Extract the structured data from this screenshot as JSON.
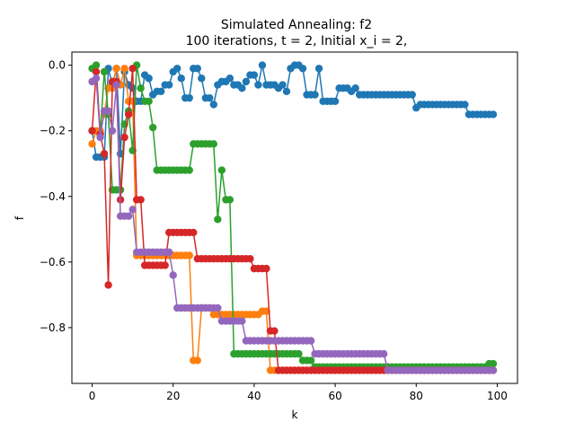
{
  "chart_data": {
    "type": "line",
    "title": "Simulated Annealing: f2",
    "subtitle": "100 iterations, t = 2, Initial x_i = 2,",
    "xlabel": "k",
    "ylabel": "f",
    "xlim": [
      -5,
      105
    ],
    "ylim": [
      -0.97,
      0.04
    ],
    "xticks": [
      0,
      20,
      40,
      60,
      80,
      100
    ],
    "yticks": [
      0.0,
      -0.2,
      -0.4,
      -0.6,
      -0.8
    ],
    "ytick_labels": [
      "0.0",
      "−0.2",
      "−0.4",
      "−0.6",
      "−0.8"
    ],
    "grid": false,
    "marker": "circle",
    "series": [
      {
        "color": "#1f77b4",
        "values": [
          -0.2,
          -0.28,
          -0.28,
          -0.28,
          -0.01,
          -0.06,
          -0.01,
          -0.27,
          -0.02,
          -0.06,
          -0.07,
          -0.11,
          -0.11,
          -0.03,
          -0.04,
          -0.09,
          -0.08,
          -0.08,
          -0.06,
          -0.06,
          -0.02,
          -0.01,
          -0.04,
          -0.1,
          -0.1,
          -0.01,
          -0.01,
          -0.04,
          -0.1,
          -0.1,
          -0.12,
          -0.06,
          -0.05,
          -0.05,
          -0.04,
          -0.06,
          -0.06,
          -0.07,
          -0.05,
          -0.03,
          -0.03,
          -0.06,
          0.0,
          -0.06,
          -0.06,
          -0.06,
          -0.07,
          -0.06,
          -0.08,
          -0.01,
          0.0,
          0.0,
          -0.01,
          -0.09,
          -0.09,
          -0.09,
          -0.01,
          -0.11,
          -0.11,
          -0.11,
          -0.11,
          -0.07,
          -0.07,
          -0.07,
          -0.08,
          -0.07,
          -0.09,
          -0.09,
          -0.09,
          -0.09,
          -0.09,
          -0.09,
          -0.09,
          -0.09,
          -0.09,
          -0.09,
          -0.09,
          -0.09,
          -0.09,
          -0.09,
          -0.13,
          -0.12,
          -0.12,
          -0.12,
          -0.12,
          -0.12,
          -0.12,
          -0.12,
          -0.12,
          -0.12,
          -0.12,
          -0.12,
          -0.12,
          -0.15,
          -0.15,
          -0.15,
          -0.15,
          -0.15,
          -0.15,
          -0.15
        ]
      },
      {
        "color": "#ff7f0e",
        "values": [
          -0.24,
          -0.2,
          -0.2,
          -0.15,
          -0.07,
          -0.07,
          -0.01,
          -0.06,
          -0.01,
          -0.11,
          -0.11,
          -0.58,
          -0.58,
          -0.58,
          -0.58,
          -0.58,
          -0.58,
          -0.58,
          -0.58,
          -0.58,
          -0.58,
          -0.58,
          -0.58,
          -0.58,
          -0.58,
          -0.9,
          -0.9,
          -0.74,
          -0.74,
          -0.74,
          -0.76,
          -0.76,
          -0.76,
          -0.76,
          -0.76,
          -0.76,
          -0.76,
          -0.76,
          -0.76,
          -0.76,
          -0.76,
          -0.76,
          -0.75,
          -0.75,
          -0.93,
          -0.93,
          -0.93,
          -0.93,
          -0.93,
          -0.93,
          -0.93,
          -0.93,
          -0.93,
          -0.93,
          -0.93,
          -0.93,
          -0.93,
          -0.93,
          -0.93,
          -0.93,
          -0.93,
          -0.93,
          -0.93,
          -0.93,
          -0.93,
          -0.93,
          -0.93,
          -0.93,
          -0.93,
          -0.93,
          -0.93,
          -0.93,
          -0.93,
          -0.93,
          -0.93,
          -0.93,
          -0.93,
          -0.93,
          -0.93,
          -0.93,
          -0.93,
          -0.93,
          -0.93,
          -0.93,
          -0.93,
          -0.93,
          -0.93,
          -0.93,
          -0.93,
          -0.93,
          -0.93,
          -0.93,
          -0.93,
          -0.93,
          -0.93,
          -0.93,
          -0.93,
          -0.93,
          -0.93,
          -0.93
        ]
      },
      {
        "color": "#2ca02c",
        "values": [
          -0.01,
          0.0,
          -0.21,
          -0.02,
          -0.15,
          -0.38,
          -0.38,
          -0.38,
          -0.18,
          -0.14,
          -0.26,
          0.0,
          -0.07,
          -0.11,
          -0.11,
          -0.19,
          -0.32,
          -0.32,
          -0.32,
          -0.32,
          -0.32,
          -0.32,
          -0.32,
          -0.32,
          -0.32,
          -0.24,
          -0.24,
          -0.24,
          -0.24,
          -0.24,
          -0.24,
          -0.47,
          -0.32,
          -0.41,
          -0.41,
          -0.88,
          -0.88,
          -0.88,
          -0.88,
          -0.88,
          -0.88,
          -0.88,
          -0.88,
          -0.88,
          -0.88,
          -0.88,
          -0.88,
          -0.88,
          -0.88,
          -0.88,
          -0.88,
          -0.88,
          -0.9,
          -0.9,
          -0.9,
          -0.92,
          -0.92,
          -0.92,
          -0.92,
          -0.92,
          -0.92,
          -0.92,
          -0.92,
          -0.92,
          -0.92,
          -0.92,
          -0.92,
          -0.92,
          -0.92,
          -0.92,
          -0.92,
          -0.92,
          -0.92,
          -0.92,
          -0.92,
          -0.92,
          -0.92,
          -0.92,
          -0.92,
          -0.92,
          -0.92,
          -0.92,
          -0.92,
          -0.92,
          -0.92,
          -0.92,
          -0.92,
          -0.92,
          -0.92,
          -0.92,
          -0.92,
          -0.92,
          -0.92,
          -0.92,
          -0.92,
          -0.92,
          -0.92,
          -0.92,
          -0.91,
          -0.91
        ]
      },
      {
        "color": "#d62728",
        "values": [
          -0.2,
          -0.02,
          -0.21,
          -0.27,
          -0.67,
          -0.05,
          -0.05,
          -0.41,
          -0.22,
          -0.15,
          -0.01,
          -0.41,
          -0.41,
          -0.61,
          -0.61,
          -0.61,
          -0.61,
          -0.61,
          -0.61,
          -0.51,
          -0.51,
          -0.51,
          -0.51,
          -0.51,
          -0.51,
          -0.51,
          -0.59,
          -0.59,
          -0.59,
          -0.59,
          -0.59,
          -0.59,
          -0.59,
          -0.59,
          -0.59,
          -0.59,
          -0.59,
          -0.59,
          -0.59,
          -0.59,
          -0.62,
          -0.62,
          -0.62,
          -0.62,
          -0.81,
          -0.81,
          -0.93,
          -0.93,
          -0.93,
          -0.93,
          -0.93,
          -0.93,
          -0.93,
          -0.93,
          -0.93,
          -0.93,
          -0.93,
          -0.93,
          -0.93,
          -0.93,
          -0.93,
          -0.93,
          -0.93,
          -0.93,
          -0.93,
          -0.93,
          -0.93,
          -0.93,
          -0.93,
          -0.93,
          -0.93,
          -0.93,
          -0.93,
          -0.93,
          -0.93,
          -0.93,
          -0.93,
          -0.93,
          -0.93,
          -0.93,
          -0.93,
          -0.93,
          -0.93,
          -0.93,
          -0.93,
          -0.93,
          -0.93,
          -0.93,
          -0.93,
          -0.93,
          -0.93,
          -0.93,
          -0.93,
          -0.93,
          -0.93,
          -0.93,
          -0.93,
          -0.93,
          -0.93,
          -0.93
        ]
      },
      {
        "color": "#9467bd",
        "values": [
          -0.05,
          -0.04,
          -0.22,
          -0.14,
          -0.14,
          -0.2,
          -0.06,
          -0.46,
          -0.46,
          -0.46,
          -0.44,
          -0.57,
          -0.57,
          -0.57,
          -0.57,
          -0.57,
          -0.57,
          -0.57,
          -0.57,
          -0.57,
          -0.64,
          -0.74,
          -0.74,
          -0.74,
          -0.74,
          -0.74,
          -0.74,
          -0.74,
          -0.74,
          -0.74,
          -0.74,
          -0.74,
          -0.78,
          -0.78,
          -0.78,
          -0.78,
          -0.78,
          -0.78,
          -0.84,
          -0.84,
          -0.84,
          -0.84,
          -0.84,
          -0.84,
          -0.84,
          -0.84,
          -0.84,
          -0.84,
          -0.84,
          -0.84,
          -0.84,
          -0.84,
          -0.84,
          -0.84,
          -0.84,
          -0.88,
          -0.88,
          -0.88,
          -0.88,
          -0.88,
          -0.88,
          -0.88,
          -0.88,
          -0.88,
          -0.88,
          -0.88,
          -0.88,
          -0.88,
          -0.88,
          -0.88,
          -0.88,
          -0.88,
          -0.88,
          -0.93,
          -0.93,
          -0.93,
          -0.93,
          -0.93,
          -0.93,
          -0.93,
          -0.93,
          -0.93,
          -0.93,
          -0.93,
          -0.93,
          -0.93,
          -0.93,
          -0.93,
          -0.93,
          -0.93,
          -0.93,
          -0.93,
          -0.93,
          -0.93,
          -0.93,
          -0.93,
          -0.93,
          -0.93,
          -0.93,
          -0.93
        ]
      }
    ]
  }
}
